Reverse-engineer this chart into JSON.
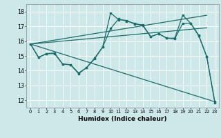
{
  "background_color": "#cce8e8",
  "grid_color": "#ffffff",
  "line_color": "#1a6b6b",
  "xlabel": "Humidex (Indice chaleur)",
  "xlim": [
    -0.5,
    23.5
  ],
  "ylim": [
    11.5,
    18.5
  ],
  "yticks": [
    12,
    13,
    14,
    15,
    16,
    17,
    18
  ],
  "xticks": [
    0,
    1,
    2,
    3,
    4,
    5,
    6,
    7,
    8,
    9,
    10,
    11,
    12,
    13,
    14,
    15,
    16,
    17,
    18,
    19,
    20,
    21,
    22,
    23
  ],
  "line1_x": [
    0,
    1,
    2,
    3,
    4,
    5,
    6,
    7,
    8,
    9,
    10,
    11,
    12,
    13,
    14,
    15,
    16,
    17,
    18,
    19,
    20,
    21,
    22,
    23
  ],
  "line1_y": [
    15.8,
    14.9,
    15.15,
    15.15,
    14.45,
    14.4,
    13.8,
    14.2,
    14.8,
    15.6,
    17.9,
    17.45,
    17.4,
    17.15,
    17.1,
    16.3,
    16.5,
    16.2,
    16.2,
    17.75,
    17.2,
    16.4,
    14.95,
    11.9
  ],
  "line2_x": [
    0,
    1,
    2,
    3,
    4,
    5,
    6,
    7,
    8,
    9,
    10,
    11,
    12,
    13,
    14,
    15,
    16,
    17,
    18,
    19,
    20,
    21,
    22,
    23
  ],
  "line2_y": [
    15.8,
    14.9,
    15.15,
    15.2,
    14.45,
    14.4,
    13.85,
    14.2,
    14.85,
    15.6,
    16.85,
    17.5,
    17.35,
    17.2,
    17.05,
    16.3,
    16.5,
    16.2,
    16.15,
    17.2,
    17.2,
    16.35,
    14.95,
    11.85
  ],
  "line3_x": [
    0,
    22
  ],
  "line3_y": [
    15.8,
    17.75
  ],
  "line4_x": [
    0,
    22
  ],
  "line4_y": [
    15.8,
    16.9
  ],
  "line5_x": [
    0,
    23
  ],
  "line5_y": [
    15.8,
    11.9
  ]
}
